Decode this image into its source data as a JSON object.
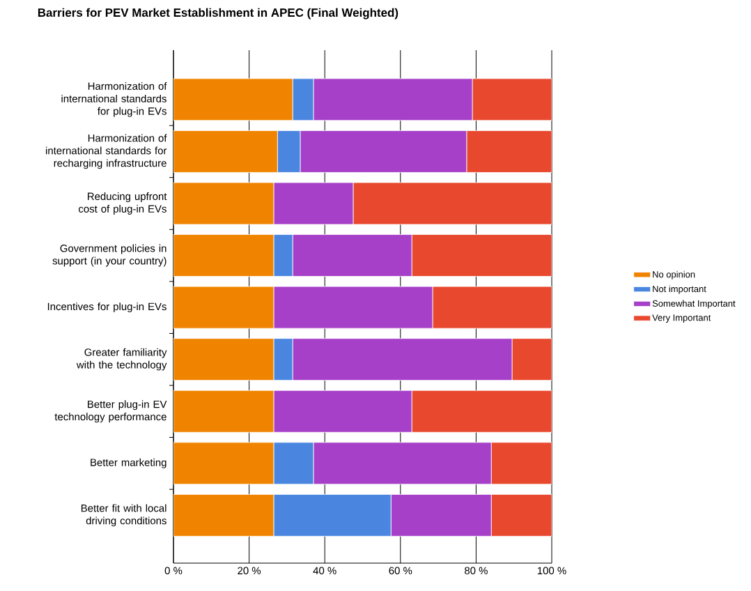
{
  "chart_data": {
    "type": "bar",
    "title": "Barriers for PEV Market Establishment in APEC (Final Weighted)",
    "orientation": "horizontal",
    "stacked": true,
    "categories": [
      "Harmonization of international standards for plug-in EVs",
      "Harmonization of international standards for recharging infrastructure",
      "Reducing upfront cost of plug-in EVs",
      "Government policies in support (in your country)",
      "Incentives for plug-in EVs",
      "Greater familiarity with the technology",
      "Better plug-in EV technology performance",
      "Better marketing",
      "Better fit with local driving conditions"
    ],
    "series": [
      {
        "name": "No opinion",
        "color": "#f08400",
        "values": [
          31.5,
          27.5,
          26.5,
          26.5,
          26.5,
          26.5,
          26.5,
          26.5,
          26.5
        ]
      },
      {
        "name": "Not important",
        "color": "#4a86e0",
        "values": [
          5.5,
          6,
          0,
          5,
          0,
          5,
          0,
          10.5,
          31
        ]
      },
      {
        "name": "Somewhat Important",
        "color": "#a640c8",
        "values": [
          42,
          44,
          21,
          31.5,
          42,
          58,
          36.5,
          47,
          26.5
        ]
      },
      {
        "name": "Very Important",
        "color": "#e8482e",
        "values": [
          21,
          22.5,
          52.5,
          37,
          31.5,
          10.5,
          37,
          16,
          16
        ]
      }
    ],
    "xlim": [
      0,
      100
    ],
    "xticks": [
      {
        "value": 0,
        "label": "0 %"
      },
      {
        "value": 20,
        "label": "20 %"
      },
      {
        "value": 40,
        "label": "40 %"
      },
      {
        "value": 60,
        "label": "60 %"
      },
      {
        "value": 80,
        "label": "80 %"
      },
      {
        "value": 100,
        "label": "100 %"
      }
    ],
    "grid": "x",
    "legend": "right"
  }
}
